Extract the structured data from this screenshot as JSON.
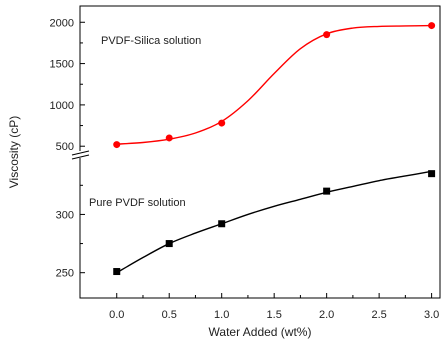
{
  "chart_data": {
    "type": "line",
    "xlabel": "Water Added (wt%)",
    "ylabel": "Viscosity (cP)",
    "xlim": [
      -0.35,
      3.08
    ],
    "x_ticks": [
      "0.0",
      "0.5",
      "1.0",
      "1.5",
      "2.0",
      "2.5",
      "3.0"
    ],
    "x_tick_values": [
      0.0,
      0.5,
      1.0,
      1.5,
      2.0,
      2.5,
      3.0
    ],
    "axis_break": true,
    "panels": {
      "upper": {
        "ylim": [
          430,
          2100
        ],
        "y_ticks": [
          "500",
          "1000",
          "1500",
          "2000"
        ],
        "y_tick_values": [
          500,
          1000,
          1500,
          2000
        ]
      },
      "lower": {
        "ylim": [
          230,
          345
        ],
        "y_ticks": [
          "250",
          "300"
        ],
        "y_tick_values": [
          250,
          300
        ]
      }
    },
    "series": [
      {
        "name": "PVDF-Silica solution",
        "panel": "upper",
        "color": "#ff0000",
        "marker": "circle",
        "x": [
          0.0,
          0.5,
          1.0,
          2.0,
          3.0
        ],
        "y": [
          520,
          600,
          780,
          1850,
          1960
        ],
        "fit": {
          "x": [
            0.0,
            0.25,
            0.5,
            0.75,
            1.0,
            1.25,
            1.5,
            1.75,
            2.0,
            2.25,
            2.5,
            2.75,
            3.0
          ],
          "y": [
            525,
            545,
            585,
            660,
            800,
            1050,
            1380,
            1680,
            1860,
            1930,
            1950,
            1955,
            1960
          ]
        }
      },
      {
        "name": "Pure PVDF solution",
        "panel": "lower",
        "color": "#000000",
        "marker": "square",
        "x": [
          0.0,
          0.5,
          1.0,
          2.0,
          3.0
        ],
        "y": [
          251,
          275,
          292,
          320,
          335
        ],
        "fit": {
          "x": [
            0.0,
            0.25,
            0.5,
            0.75,
            1.0,
            1.25,
            1.5,
            1.75,
            2.0,
            2.25,
            2.5,
            2.75,
            3.0
          ],
          "y": [
            250,
            263,
            275,
            284,
            292,
            300,
            307,
            313,
            319,
            324,
            329,
            333,
            337
          ]
        }
      }
    ],
    "annotations": [
      "PVDF-Silica solution",
      "Pure PVDF solution"
    ]
  }
}
